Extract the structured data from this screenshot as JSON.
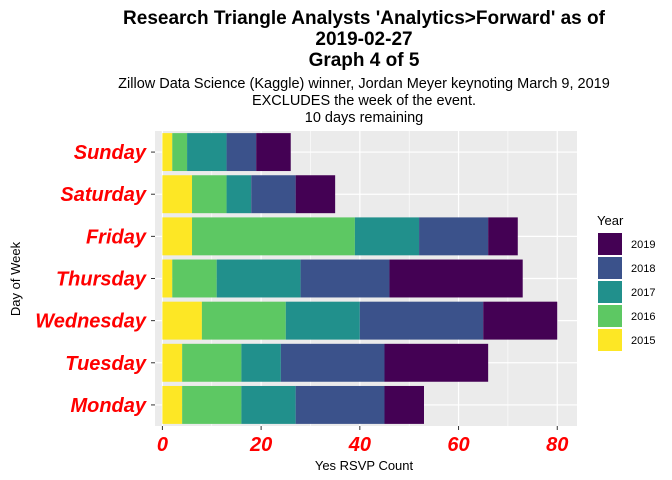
{
  "chart_data": {
    "type": "bar",
    "orientation": "horizontal",
    "stacked": true,
    "title_lines": [
      "Research Triangle Analysts 'Analytics>Forward' as of",
      "2019-02-27",
      "Graph 4 of 5"
    ],
    "subtitle_lines": [
      "Zillow Data Science (Kaggle) winner, Jordan Meyer keynoting March 9, 2019",
      "EXCLUDES the week of the event.",
      "10 days remaining"
    ],
    "xlabel": "Yes RSVP Count",
    "ylabel": "Day of Week",
    "xlim": [
      -1.5,
      84
    ],
    "xticks": [
      0,
      20,
      40,
      60,
      80
    ],
    "categories": [
      "Sunday",
      "Saturday",
      "Friday",
      "Thursday",
      "Wednesday",
      "Tuesday",
      "Monday"
    ],
    "legend": {
      "title": "Year",
      "placement": "right"
    },
    "grid": true,
    "series": [
      {
        "name": "2015",
        "color": "#FDE725",
        "values": [
          2,
          6,
          6,
          2,
          8,
          4,
          4
        ]
      },
      {
        "name": "2016",
        "color": "#5DC863",
        "values": [
          3,
          7,
          33,
          9,
          17,
          12,
          12
        ]
      },
      {
        "name": "2017",
        "color": "#21908C",
        "values": [
          8,
          5,
          13,
          17,
          15,
          8,
          11
        ]
      },
      {
        "name": "2018",
        "color": "#3B528B",
        "values": [
          6,
          9,
          14,
          18,
          25,
          21,
          18
        ]
      },
      {
        "name": "2019",
        "color": "#440154",
        "values": [
          7,
          8,
          6,
          27,
          15,
          21,
          8
        ]
      }
    ]
  }
}
